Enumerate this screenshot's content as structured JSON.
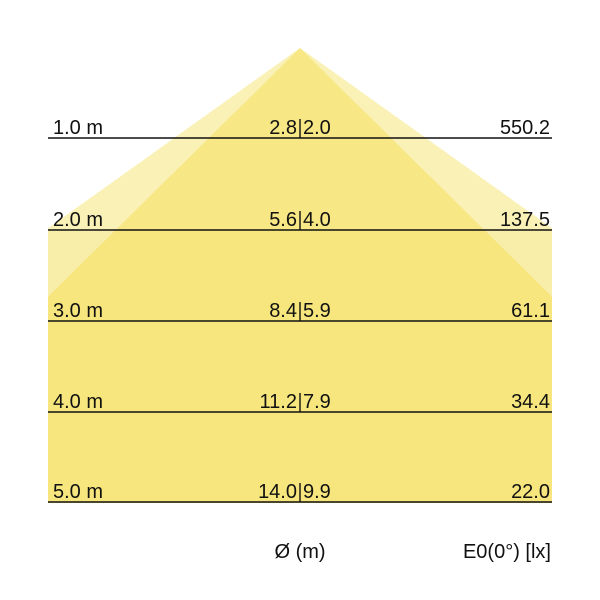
{
  "diagram": {
    "beam_color": "#f3dc4a",
    "rows": [
      {
        "distance": "1.0 m",
        "diameter_c0": "2.8",
        "diameter_c90": "2.0",
        "illuminance": "550.2"
      },
      {
        "distance": "2.0 m",
        "diameter_c0": "5.6",
        "diameter_c90": "4.0",
        "illuminance": "137.5"
      },
      {
        "distance": "3.0 m",
        "diameter_c0": "8.4",
        "diameter_c90": "5.9",
        "illuminance": "61.1"
      },
      {
        "distance": "4.0 m",
        "diameter_c0": "11.2",
        "diameter_c90": "7.9",
        "illuminance": "34.4"
      },
      {
        "distance": "5.0 m",
        "diameter_c0": "14.0",
        "diameter_c90": "9.9",
        "illuminance": "22.0"
      }
    ],
    "diameter_header": "Ø (m)",
    "illuminance_header": "E0(0°) [lx]"
  }
}
